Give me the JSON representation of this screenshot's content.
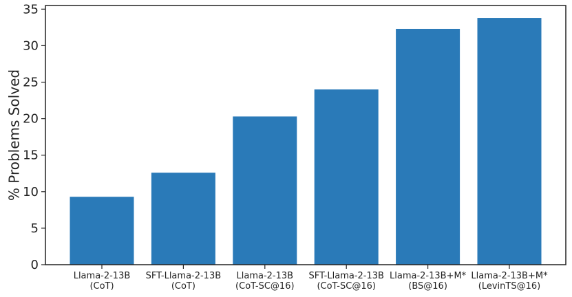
{
  "chart_data": {
    "type": "bar",
    "categories": [
      [
        "Llama-2-13B",
        "(CoT)"
      ],
      [
        "SFT-Llama-2-13B",
        "(CoT)"
      ],
      [
        "Llama-2-13B",
        "(CoT-SC@16)"
      ],
      [
        "SFT-Llama-2-13B",
        "(CoT-SC@16)"
      ],
      [
        "Llama-2-13B+M*",
        "(BS@16)"
      ],
      [
        "Llama-2-13B+M*",
        "(LevinTS@16)"
      ]
    ],
    "values": [
      9.3,
      12.6,
      20.3,
      24.0,
      32.3,
      33.8
    ],
    "title": "",
    "xlabel": "",
    "ylabel": "% Problems Solved",
    "ylim": [
      0,
      35.5
    ],
    "yticks": [
      0,
      5,
      10,
      15,
      20,
      25,
      30,
      35
    ],
    "grid": false,
    "bar_color": "#2a7ab8"
  }
}
